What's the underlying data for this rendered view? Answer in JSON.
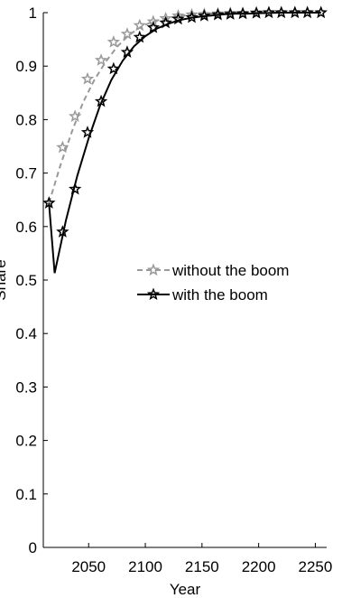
{
  "chart_data": {
    "type": "line",
    "title": "",
    "xlabel": "Year",
    "ylabel": "Share",
    "xlim": [
      2010,
      2260
    ],
    "ylim": [
      0,
      1
    ],
    "xticks": [
      2050,
      2100,
      2150,
      2200,
      2250
    ],
    "yticks": [
      0,
      0.1,
      0.2,
      0.3,
      0.4,
      0.5,
      0.6,
      0.7,
      0.8,
      0.9,
      1
    ],
    "legend_position": "center-right",
    "grid": false,
    "series": [
      {
        "name": "without the boom",
        "color": "#999999",
        "line_style": "dashed",
        "marker": "star",
        "x": [
          2015,
          2025,
          2035,
          2045,
          2055,
          2065,
          2075,
          2085,
          2095,
          2105,
          2115,
          2125,
          2135,
          2145,
          2155,
          2165,
          2175,
          2185,
          2195,
          2205,
          2215,
          2225,
          2235,
          2245,
          2255
        ],
        "values": [
          0.644,
          0.714,
          0.776,
          0.832,
          0.874,
          0.908,
          0.936,
          0.957,
          0.972,
          0.982,
          0.988,
          0.992,
          0.995,
          0.997,
          0.998,
          0.999,
          0.999,
          1.0,
          1.0,
          1.0,
          1.0,
          1.0,
          1.0,
          1.0,
          1.0
        ],
        "markers_x": [
          2015,
          2027,
          2038,
          2049,
          2061,
          2072,
          2084,
          2095,
          2107,
          2118,
          2129,
          2141,
          2152,
          2164,
          2175,
          2186,
          2198,
          2209,
          2220,
          2232,
          2243,
          2255
        ],
        "markers_y": [
          0.644,
          0.748,
          0.806,
          0.876,
          0.911,
          0.945,
          0.96,
          0.976,
          0.983,
          0.989,
          0.994,
          0.996,
          0.997,
          0.998,
          0.999,
          0.999,
          1.0,
          1.0,
          1.0,
          1.0,
          1.0,
          1.0
        ]
      },
      {
        "name": "with the boom",
        "color": "#000000",
        "line_style": "solid",
        "marker": "star",
        "x": [
          2015,
          2020,
          2030,
          2040,
          2050,
          2060,
          2070,
          2080,
          2090,
          2100,
          2110,
          2120,
          2130,
          2140,
          2150,
          2160,
          2170,
          2180,
          2190,
          2200,
          2220,
          2240,
          2255
        ],
        "values": [
          0.644,
          0.513,
          0.612,
          0.695,
          0.765,
          0.826,
          0.874,
          0.91,
          0.937,
          0.956,
          0.97,
          0.979,
          0.986,
          0.99,
          0.993,
          0.995,
          0.997,
          0.998,
          0.998,
          0.999,
          1.0,
          1.0,
          1.0
        ],
        "markers_x": [
          2015,
          2027,
          2038,
          2049,
          2061,
          2072,
          2084,
          2095,
          2107,
          2118,
          2129,
          2141,
          2152,
          2164,
          2175,
          2186,
          2198,
          2209,
          2220,
          2232,
          2243,
          2255
        ],
        "markers_y": [
          0.644,
          0.59,
          0.67,
          0.776,
          0.834,
          0.895,
          0.926,
          0.954,
          0.972,
          0.981,
          0.988,
          0.991,
          0.994,
          0.996,
          0.997,
          0.998,
          0.999,
          1.0,
          1.0,
          1.0,
          1.0,
          1.0
        ]
      }
    ]
  }
}
